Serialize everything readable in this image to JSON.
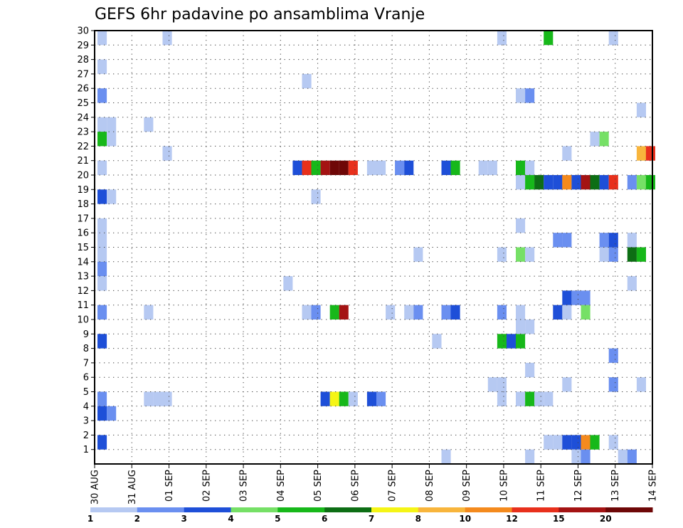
{
  "chart_data": {
    "type": "heatmap",
    "title": "GEFS 6hr padavine po ansamblima Vranje",
    "x_tick_labels": [
      "30 AUG",
      "31 AUG",
      "01 SEP",
      "02 SEP",
      "03 SEP",
      "04 SEP",
      "05 SEP",
      "06 SEP",
      "07 SEP",
      "08 SEP",
      "09 SEP",
      "10 SEP",
      "11 SEP",
      "12 SEP",
      "13 SEP",
      "14 SEP"
    ],
    "y_tick_labels": [
      "1",
      "2",
      "3",
      "4",
      "5",
      "6",
      "7",
      "8",
      "9",
      "10",
      "11",
      "12",
      "13",
      "14",
      "15",
      "16",
      "17",
      "18",
      "19",
      "20",
      "21",
      "22",
      "23",
      "24",
      "25",
      "26",
      "27",
      "28",
      "29",
      "30"
    ],
    "xlim": [
      0,
      60
    ],
    "ylim": [
      0,
      30
    ],
    "grid": true,
    "colorbar": {
      "labels": [
        "1",
        "2",
        "3",
        "4",
        "5",
        "6",
        "7",
        "8",
        "10",
        "12",
        "15",
        "20"
      ],
      "colors": [
        "#b6c9f2",
        "#6a8ff0",
        "#1e4fd8",
        "#76e066",
        "#17b81a",
        "#0d6e14",
        "#f5f516",
        "#f8b53c",
        "#f48a1d",
        "#e8301c",
        "#a41313",
        "#6e0707"
      ]
    },
    "cells": [
      [
        0,
        29,
        1
      ],
      [
        0,
        27,
        1
      ],
      [
        0,
        25,
        2
      ],
      [
        0,
        23,
        1
      ],
      [
        1,
        23,
        1
      ],
      [
        0,
        22,
        5
      ],
      [
        1,
        22,
        1
      ],
      [
        0,
        20,
        1
      ],
      [
        0,
        18,
        3
      ],
      [
        1,
        18,
        1
      ],
      [
        0,
        16,
        1
      ],
      [
        0,
        15,
        1
      ],
      [
        0,
        14,
        1
      ],
      [
        0,
        13,
        2
      ],
      [
        0,
        12,
        1
      ],
      [
        0,
        10,
        2
      ],
      [
        0,
        8,
        3
      ],
      [
        0,
        4,
        2
      ],
      [
        0,
        3,
        3
      ],
      [
        1,
        3,
        2
      ],
      [
        0,
        1,
        3
      ],
      [
        5,
        23,
        1
      ],
      [
        5,
        10,
        1
      ],
      [
        5,
        4,
        1
      ],
      [
        6,
        4,
        1
      ],
      [
        7,
        4,
        1
      ],
      [
        7,
        29,
        1
      ],
      [
        7,
        21,
        1
      ],
      [
        20,
        12,
        1
      ],
      [
        22,
        26,
        1
      ],
      [
        23,
        18,
        1
      ],
      [
        21,
        20,
        3
      ],
      [
        22,
        20,
        10
      ],
      [
        23,
        20,
        5
      ],
      [
        24,
        20,
        11
      ],
      [
        25,
        20,
        12
      ],
      [
        26,
        20,
        12
      ],
      [
        27,
        20,
        10
      ],
      [
        22,
        10,
        1
      ],
      [
        23,
        10,
        2
      ],
      [
        25,
        10,
        5
      ],
      [
        26,
        10,
        11
      ],
      [
        24,
        4,
        3
      ],
      [
        25,
        4,
        7
      ],
      [
        26,
        4,
        5
      ],
      [
        27,
        4,
        1
      ],
      [
        29,
        4,
        3
      ],
      [
        30,
        4,
        2
      ],
      [
        29,
        20,
        1
      ],
      [
        30,
        20,
        1
      ],
      [
        32,
        20,
        2
      ],
      [
        33,
        20,
        3
      ],
      [
        31,
        10,
        1
      ],
      [
        33,
        10,
        1
      ],
      [
        34,
        10,
        2
      ],
      [
        34,
        14,
        1
      ],
      [
        36,
        8,
        1
      ],
      [
        37,
        20,
        3
      ],
      [
        38,
        20,
        5
      ],
      [
        37,
        10,
        2
      ],
      [
        38,
        10,
        3
      ],
      [
        37,
        0,
        1
      ],
      [
        41,
        20,
        1
      ],
      [
        42,
        20,
        1
      ],
      [
        43,
        10,
        2
      ],
      [
        43,
        29,
        1
      ],
      [
        43,
        14,
        1
      ],
      [
        43,
        8,
        5
      ],
      [
        44,
        8,
        3
      ],
      [
        45,
        8,
        5
      ],
      [
        42,
        5,
        1
      ],
      [
        43,
        5,
        1
      ],
      [
        43,
        4,
        1
      ],
      [
        45,
        25,
        1
      ],
      [
        46,
        25,
        2
      ],
      [
        45,
        19,
        1
      ],
      [
        45,
        20,
        5
      ],
      [
        46,
        20,
        1
      ],
      [
        45,
        16,
        1
      ],
      [
        45,
        14,
        4
      ],
      [
        46,
        14,
        1
      ],
      [
        45,
        10,
        1
      ],
      [
        45,
        9,
        1
      ],
      [
        46,
        9,
        1
      ],
      [
        45,
        4,
        1
      ],
      [
        46,
        4,
        5
      ],
      [
        47,
        4,
        1
      ],
      [
        48,
        4,
        1
      ],
      [
        46,
        6,
        1
      ],
      [
        46,
        0,
        1
      ],
      [
        46,
        19,
        5
      ],
      [
        47,
        19,
        6
      ],
      [
        48,
        19,
        3
      ],
      [
        49,
        19,
        3
      ],
      [
        50,
        19,
        9
      ],
      [
        51,
        19,
        3
      ],
      [
        52,
        19,
        11
      ],
      [
        53,
        19,
        6
      ],
      [
        54,
        19,
        3
      ],
      [
        55,
        19,
        10
      ],
      [
        57,
        19,
        2
      ],
      [
        58,
        19,
        4
      ],
      [
        59,
        19,
        5
      ],
      [
        48,
        29,
        5
      ],
      [
        49,
        15,
        2
      ],
      [
        50,
        15,
        2
      ],
      [
        49,
        10,
        3
      ],
      [
        50,
        10,
        1
      ],
      [
        50,
        11,
        3
      ],
      [
        51,
        11,
        2
      ],
      [
        52,
        11,
        2
      ],
      [
        52,
        10,
        4
      ],
      [
        48,
        1,
        1
      ],
      [
        49,
        1,
        1
      ],
      [
        50,
        1,
        3
      ],
      [
        51,
        1,
        3
      ],
      [
        52,
        1,
        9
      ],
      [
        53,
        1,
        5
      ],
      [
        51,
        0,
        1
      ],
      [
        52,
        0,
        2
      ],
      [
        50,
        21,
        1
      ],
      [
        50,
        5,
        1
      ],
      [
        53,
        22,
        1
      ],
      [
        54,
        22,
        4
      ],
      [
        54,
        15,
        2
      ],
      [
        55,
        15,
        3
      ],
      [
        54,
        14,
        1
      ],
      [
        55,
        14,
        2
      ],
      [
        55,
        7,
        2
      ],
      [
        55,
        5,
        2
      ],
      [
        55,
        29,
        1
      ],
      [
        55,
        1,
        1
      ],
      [
        56,
        0,
        1
      ],
      [
        57,
        0,
        2
      ],
      [
        57,
        15,
        1
      ],
      [
        57,
        12,
        1
      ],
      [
        57,
        14,
        6
      ],
      [
        58,
        14,
        5
      ],
      [
        58,
        24,
        1
      ],
      [
        58,
        5,
        1
      ],
      [
        58,
        21,
        8
      ],
      [
        59,
        21,
        10
      ]
    ]
  }
}
